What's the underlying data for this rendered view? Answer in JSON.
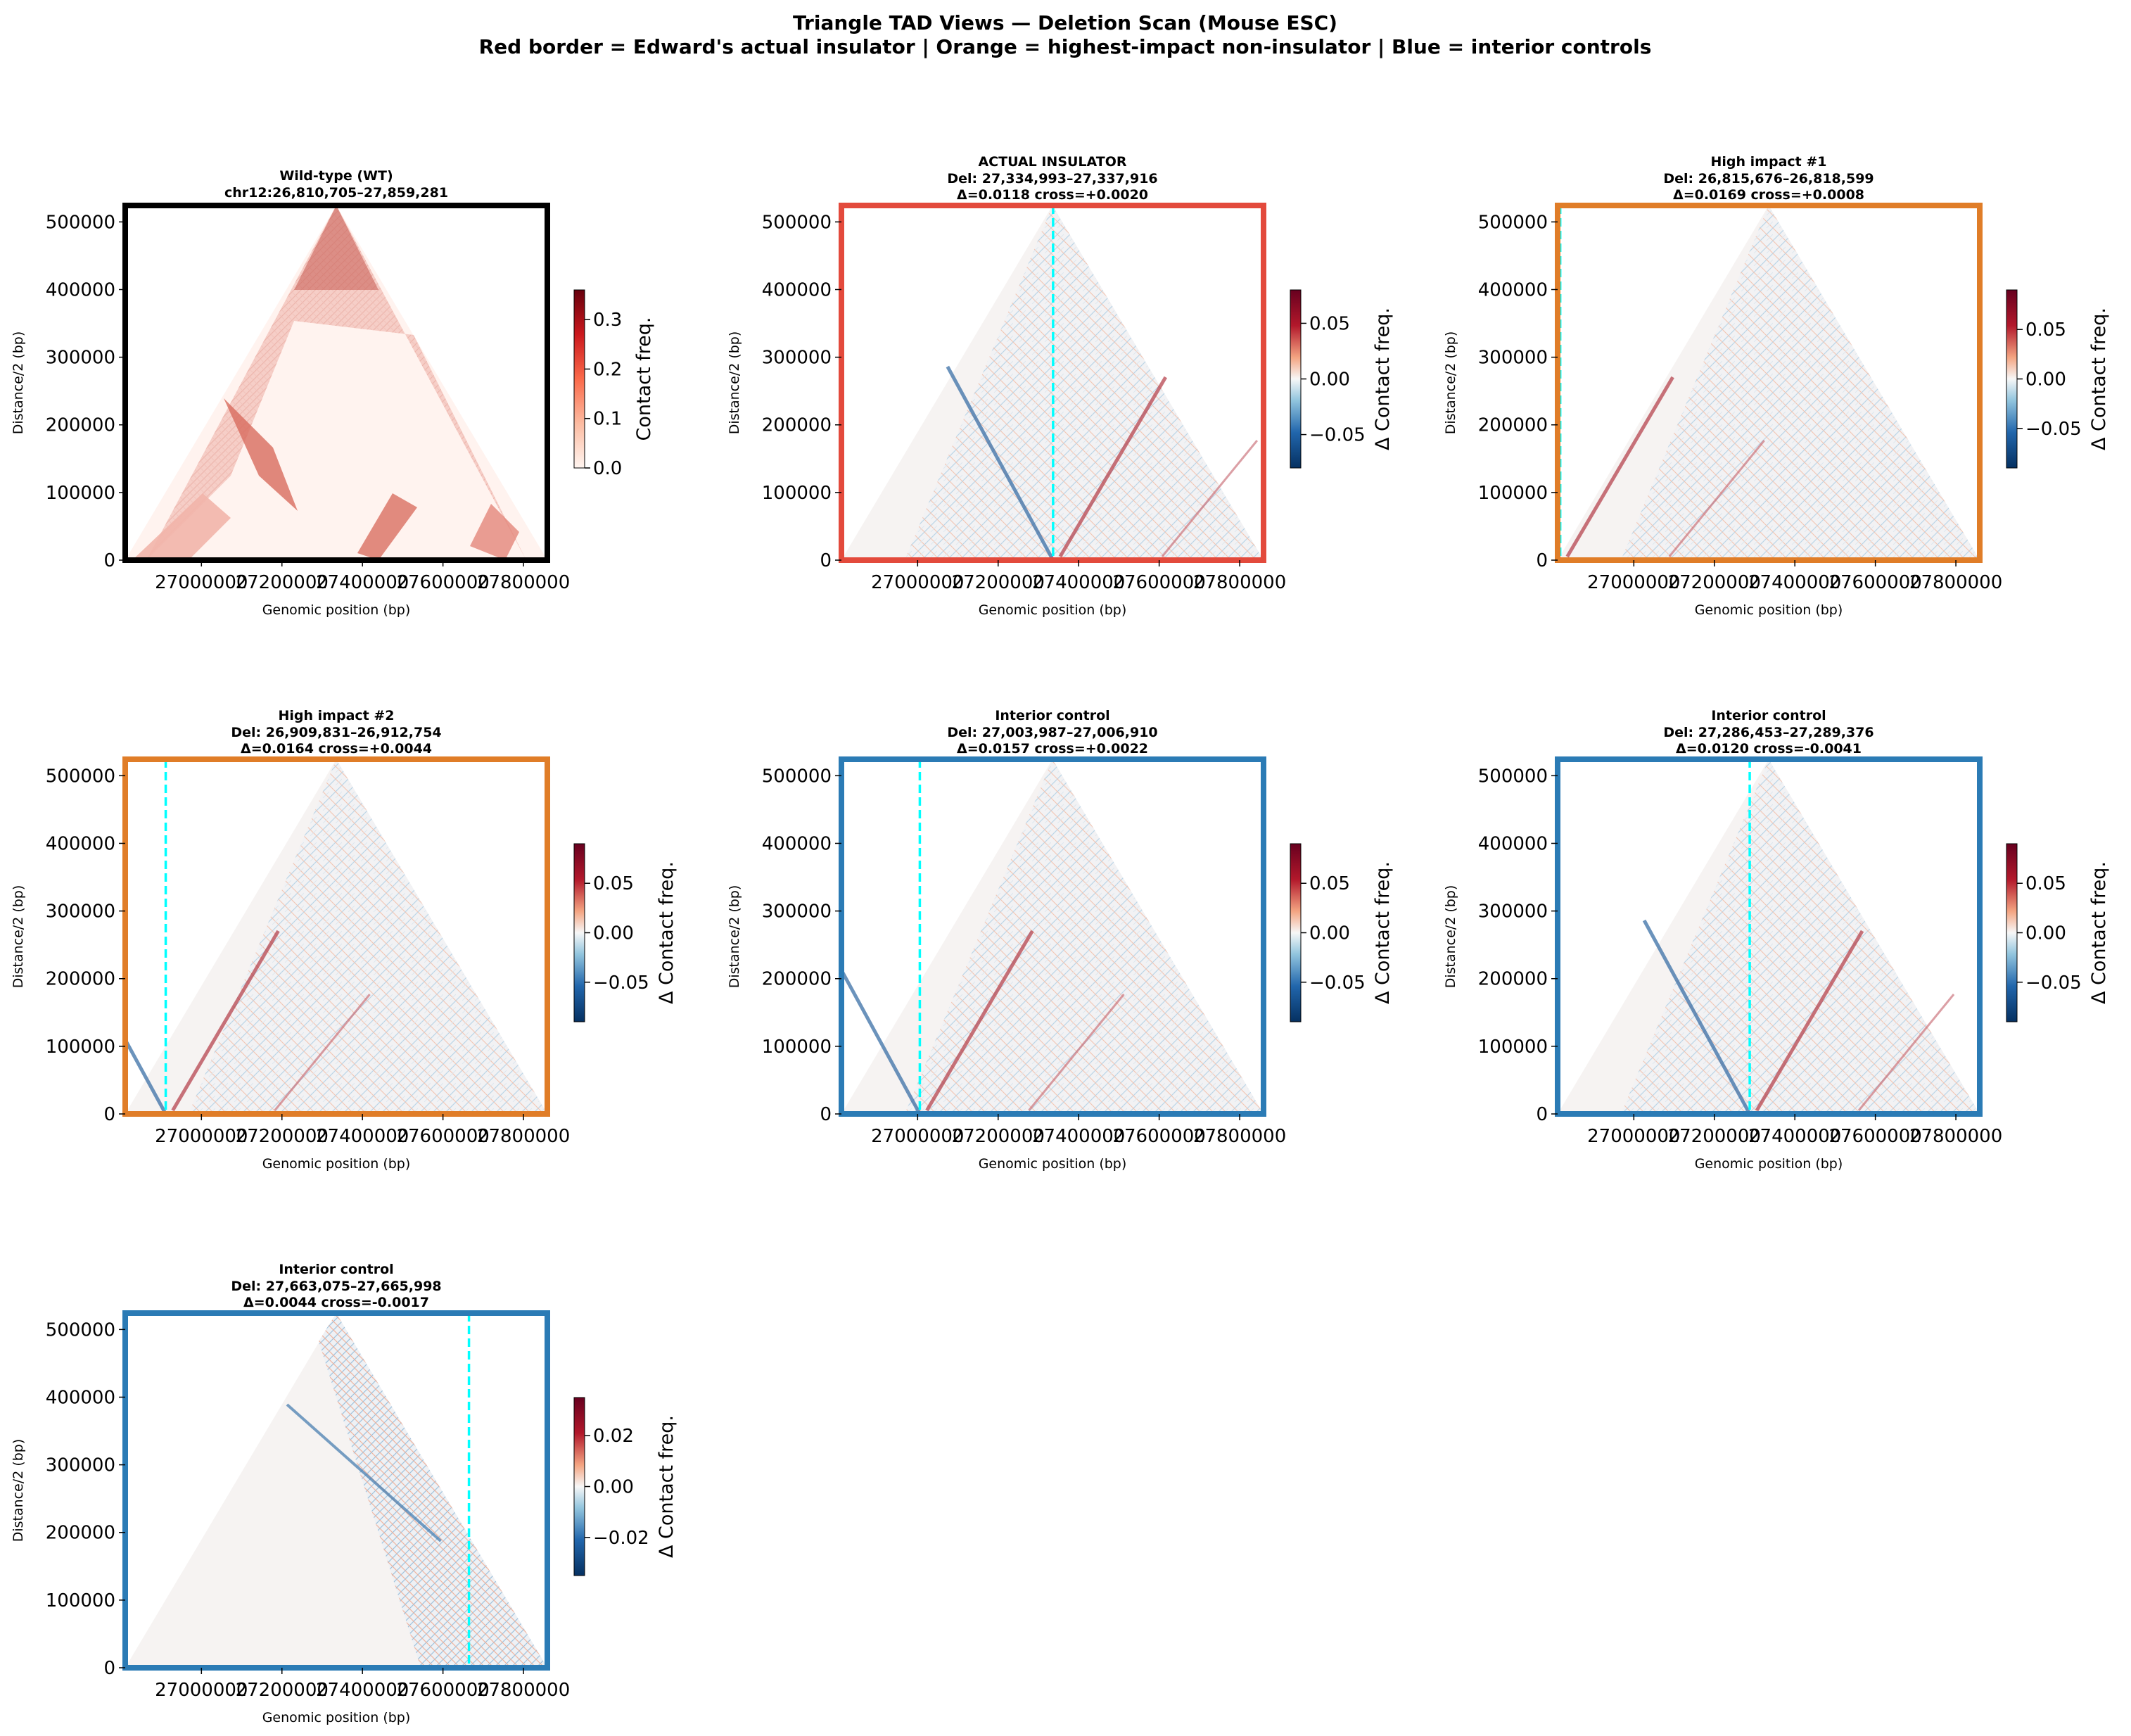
{
  "figure": {
    "title_line1": "Triangle TAD Views — Deletion Scan (Mouse ESC)",
    "title_line2": "Red border = Edward's actual insulator  |  Orange = highest-impact non-insulator  |  Blue = interior controls"
  },
  "colors": {
    "wt_border": "#000000",
    "insulator_border": "#e34a3c",
    "high_impact_border": "#e07d28",
    "control_border": "#2b7bb5",
    "deletion_line": "#00ffff",
    "reds_low": "#fff5f0",
    "reds_high": "#67000d",
    "rdbu_neg": "#053061",
    "rdbu_mid": "#f7f7f7",
    "rdbu_pos": "#67001f"
  },
  "chart_data": [
    {
      "type": "heatmap",
      "kind": "wt",
      "title": "Wild-type (WT)",
      "subtitle": "chr12:26,810,705–27,859,281",
      "subtitle2": "",
      "xlabel": "Genomic position (bp)",
      "ylabel": "Distance/2 (bp)",
      "xlim": [
        26810705,
        27859281
      ],
      "ylim": [
        0,
        524288
      ],
      "xticks": [
        "27000000",
        "27200000",
        "27400000",
        "27600000",
        "27800000"
      ],
      "yticks": [
        "0",
        "100000",
        "200000",
        "300000",
        "400000",
        "500000"
      ],
      "colorbar_label": "Contact freq.",
      "colorbar_ticks": [
        "0.0",
        "0.1",
        "0.2",
        "0.3"
      ],
      "colorbar_range": [
        0,
        0.36
      ],
      "colormap": "Reds",
      "border": "wt_border",
      "deletion_position": null
    },
    {
      "type": "heatmap",
      "kind": "insulator",
      "title": "ACTUAL INSULATOR",
      "subtitle": "Del: 27,334,993–27,337,916",
      "subtitle2": "Δ=0.0118  cross=+0.0020",
      "xlabel": "Genomic position (bp)",
      "ylabel": "Distance/2 (bp)",
      "xlim": [
        26810705,
        27859281
      ],
      "ylim": [
        0,
        524288
      ],
      "xticks": [
        "27000000",
        "27200000",
        "27400000",
        "27600000",
        "27800000"
      ],
      "yticks": [
        "0",
        "100000",
        "200000",
        "300000",
        "400000",
        "500000"
      ],
      "colorbar_label": "Δ Contact freq.",
      "colorbar_ticks": [
        "−0.05",
        "0.00",
        "0.05"
      ],
      "colorbar_range": [
        -0.08,
        0.08
      ],
      "colormap": "RdBu_r",
      "border": "insulator_border",
      "deletion_position": 27336454
    },
    {
      "type": "heatmap",
      "kind": "high",
      "title": "High impact #1",
      "subtitle": "Del: 26,815,676–26,818,599",
      "subtitle2": "Δ=0.0169  cross=+0.0008",
      "xlabel": "Genomic position (bp)",
      "ylabel": "Distance/2 (bp)",
      "xlim": [
        26810705,
        27859281
      ],
      "ylim": [
        0,
        524288
      ],
      "xticks": [
        "27000000",
        "27200000",
        "27400000",
        "27600000",
        "27800000"
      ],
      "yticks": [
        "0",
        "100000",
        "200000",
        "300000",
        "400000",
        "500000"
      ],
      "colorbar_label": "Δ Contact freq.",
      "colorbar_ticks": [
        "−0.05",
        "0.00",
        "0.05"
      ],
      "colorbar_range": [
        -0.09,
        0.09
      ],
      "colormap": "RdBu_r",
      "border": "high_impact_border",
      "deletion_position": 26817137
    },
    {
      "type": "heatmap",
      "kind": "high",
      "title": "High impact #2",
      "subtitle": "Del: 26,909,831–26,912,754",
      "subtitle2": "Δ=0.0164  cross=+0.0044",
      "xlabel": "Genomic position (bp)",
      "ylabel": "Distance/2 (bp)",
      "xlim": [
        26810705,
        27859281
      ],
      "ylim": [
        0,
        524288
      ],
      "xticks": [
        "27000000",
        "27200000",
        "27400000",
        "27600000",
        "27800000"
      ],
      "yticks": [
        "0",
        "100000",
        "200000",
        "300000",
        "400000",
        "500000"
      ],
      "colorbar_label": "Δ Contact freq.",
      "colorbar_ticks": [
        "−0.05",
        "0.00",
        "0.05"
      ],
      "colorbar_range": [
        -0.09,
        0.09
      ],
      "colormap": "RdBu_r",
      "border": "high_impact_border",
      "deletion_position": 26911292
    },
    {
      "type": "heatmap",
      "kind": "control",
      "title": "Interior control",
      "subtitle": "Del: 27,003,987–27,006,910",
      "subtitle2": "Δ=0.0157  cross=+0.0022",
      "xlabel": "Genomic position (bp)",
      "ylabel": "Distance/2 (bp)",
      "xlim": [
        26810705,
        27859281
      ],
      "ylim": [
        0,
        524288
      ],
      "xticks": [
        "27000000",
        "27200000",
        "27400000",
        "27600000",
        "27800000"
      ],
      "yticks": [
        "0",
        "100000",
        "200000",
        "300000",
        "400000",
        "500000"
      ],
      "colorbar_label": "Δ Contact freq.",
      "colorbar_ticks": [
        "−0.05",
        "0.00",
        "0.05"
      ],
      "colorbar_range": [
        -0.09,
        0.09
      ],
      "colormap": "RdBu_r",
      "border": "control_border",
      "deletion_position": 27005448
    },
    {
      "type": "heatmap",
      "kind": "control",
      "title": "Interior control",
      "subtitle": "Del: 27,286,453–27,289,376",
      "subtitle2": "Δ=0.0120  cross=-0.0041",
      "xlabel": "Genomic position (bp)",
      "ylabel": "Distance/2 (bp)",
      "xlim": [
        26810705,
        27859281
      ],
      "ylim": [
        0,
        524288
      ],
      "xticks": [
        "27000000",
        "27200000",
        "27400000",
        "27600000",
        "27800000"
      ],
      "yticks": [
        "0",
        "100000",
        "200000",
        "300000",
        "400000",
        "500000"
      ],
      "colorbar_label": "Δ Contact freq.",
      "colorbar_ticks": [
        "−0.05",
        "0.00",
        "0.05"
      ],
      "colorbar_range": [
        -0.09,
        0.09
      ],
      "colormap": "RdBu_r",
      "border": "control_border",
      "deletion_position": 27287914
    },
    {
      "type": "heatmap",
      "kind": "control_edge",
      "title": "Interior control",
      "subtitle": "Del: 27,663,075–27,665,998",
      "subtitle2": "Δ=0.0044  cross=-0.0017",
      "xlabel": "Genomic position (bp)",
      "ylabel": "Distance/2 (bp)",
      "xlim": [
        26810705,
        27859281
      ],
      "ylim": [
        0,
        524288
      ],
      "xticks": [
        "27000000",
        "27200000",
        "27400000",
        "27600000",
        "27800000"
      ],
      "yticks": [
        "0",
        "100000",
        "200000",
        "300000",
        "400000",
        "500000"
      ],
      "colorbar_label": "Δ Contact freq.",
      "colorbar_ticks": [
        "−0.02",
        "0.00",
        "0.02"
      ],
      "colorbar_range": [
        -0.035,
        0.035
      ],
      "colormap": "RdBu_r",
      "border": "control_border",
      "deletion_position": 27664536
    }
  ]
}
